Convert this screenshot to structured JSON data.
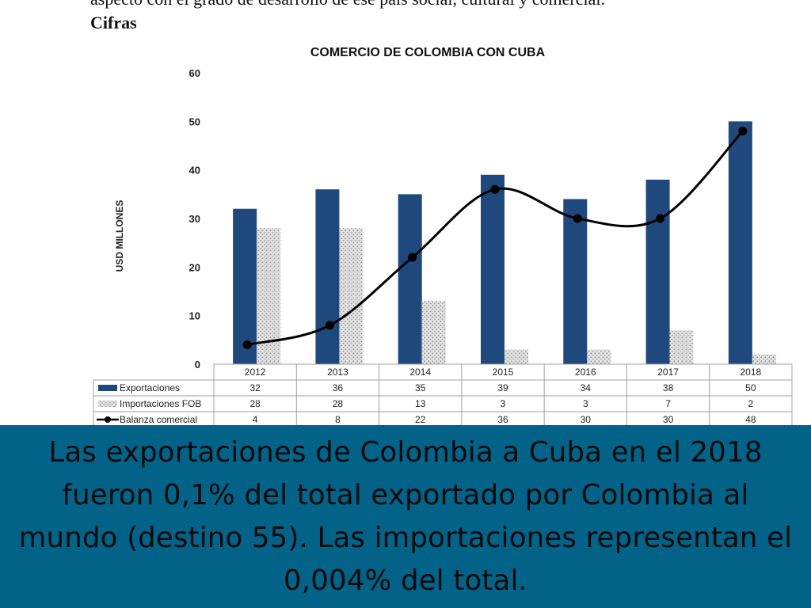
{
  "header": {
    "intro_line": "aspecto con el grado de desarrollo de ese país social, cultural y comercial.",
    "section_label": "Cifras"
  },
  "chart_data": {
    "type": "bar",
    "title": "COMERCIO DE COLOMBIA CON CUBA",
    "ylabel": "USD MILLONES",
    "xlabel": "",
    "ylim": [
      0,
      60
    ],
    "yticks": [
      0,
      10,
      20,
      30,
      40,
      50,
      60
    ],
    "grid": false,
    "categories": [
      "2012",
      "2013",
      "2014",
      "2015",
      "2016",
      "2017",
      "2018"
    ],
    "series": [
      {
        "name": "Exportaciones",
        "kind": "bar",
        "color": "#1f497d",
        "values": [
          32,
          36,
          35,
          39,
          34,
          38,
          50
        ]
      },
      {
        "name": "Importaciones FOB",
        "kind": "bar",
        "pattern": "dotted-gray",
        "color": "#c8c8c8",
        "values": [
          28,
          28,
          13,
          3,
          3,
          7,
          2
        ]
      },
      {
        "name": "Balanza comercial",
        "kind": "line",
        "color": "#000000",
        "values": [
          4,
          8,
          22,
          36,
          30,
          30,
          48
        ]
      }
    ],
    "legend_position": "data-table-below"
  },
  "caption": {
    "text": "Las exportaciones de Colombia a Cuba en el 2018 fueron 0,1% del total exportado por Colombia al mundo (destino 55). Las importaciones representan el 0,004% del total."
  }
}
